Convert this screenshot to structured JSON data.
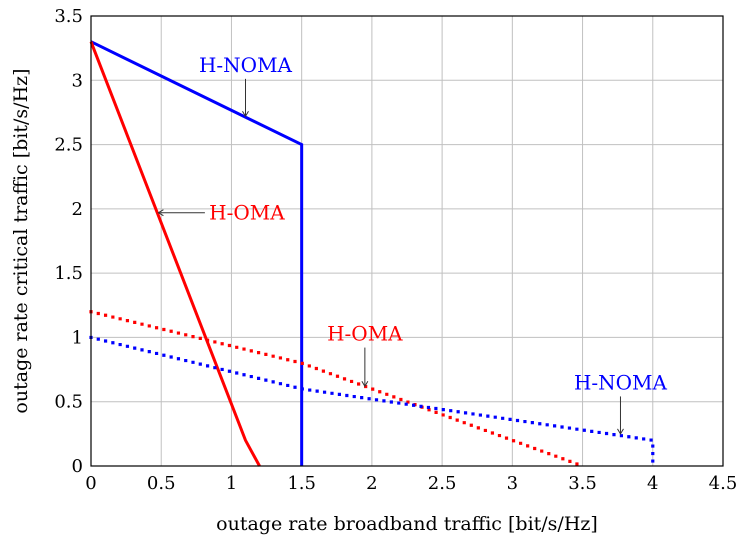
{
  "chart_data": {
    "type": "line",
    "xlabel": "outage rate broadband traffic [bit/s/Hz]",
    "ylabel": "outage rate critical traffic [bit/s/Hz]",
    "xlim": [
      0,
      4.5
    ],
    "ylim": [
      0,
      3.5
    ],
    "xticks": [
      "0",
      "0.5",
      "1",
      "1.5",
      "2",
      "2.5",
      "3",
      "3.5",
      "4",
      "4.5"
    ],
    "yticks": [
      "0",
      "0.5",
      "1",
      "1.5",
      "2",
      "2.5",
      "3",
      "3.5"
    ],
    "grid": true,
    "series": [
      {
        "name": "H-NOMA",
        "color": "#0000ff",
        "style": "solid",
        "x": [
          0,
          1.5,
          1.5
        ],
        "y": [
          3.3,
          2.5,
          0
        ]
      },
      {
        "name": "H-OMA",
        "color": "#ff0000",
        "style": "solid",
        "x": [
          0,
          1.1,
          1.2
        ],
        "y": [
          3.3,
          0.2,
          0
        ]
      },
      {
        "name": "H-OMA",
        "color": "#ff0000",
        "style": "dotted",
        "x": [
          0,
          1.5,
          3.5
        ],
        "y": [
          1.2,
          0.8,
          0
        ]
      },
      {
        "name": "H-NOMA",
        "color": "#0000ff",
        "style": "dotted",
        "x": [
          0,
          1.5,
          4,
          4
        ],
        "y": [
          1.0,
          0.6,
          0.2,
          0
        ]
      }
    ],
    "annotations": [
      {
        "text": "H-NOMA",
        "color": "#0000ff",
        "x": 1.1,
        "y": 3.12,
        "arrow_to": [
          1.1,
          2.72
        ],
        "dir": "down"
      },
      {
        "text": "H-OMA",
        "color": "#ff0000",
        "x": 1.11,
        "y": 1.97,
        "arrow_to": [
          0.48,
          1.97
        ],
        "dir": "left"
      },
      {
        "text": "H-OMA",
        "color": "#ff0000",
        "x": 1.95,
        "y": 1.03,
        "arrow_to": [
          1.95,
          0.62
        ],
        "dir": "down"
      },
      {
        "text": "H-NOMA",
        "color": "#0000ff",
        "x": 3.77,
        "y": 0.65,
        "arrow_to": [
          3.77,
          0.25
        ],
        "dir": "down"
      }
    ]
  }
}
